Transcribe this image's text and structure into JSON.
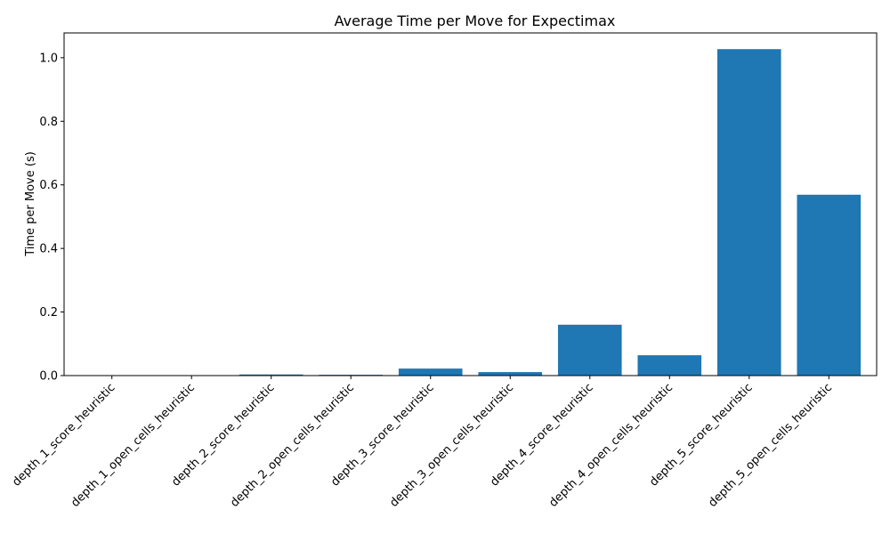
{
  "chart_data": {
    "type": "bar",
    "title": "Average Time per Move for Expectimax",
    "xlabel": "",
    "ylabel": "Time per Move (s)",
    "categories": [
      "depth_1_score_heuristic",
      "depth_1_open_cells_heuristic",
      "depth_2_score_heuristic",
      "depth_2_open_cells_heuristic",
      "depth_3_score_heuristic",
      "depth_3_open_cells_heuristic",
      "depth_4_score_heuristic",
      "depth_4_open_cells_heuristic",
      "depth_5_score_heuristic",
      "depth_5_open_cells_heuristic"
    ],
    "values": [
      0.0005,
      0.0004,
      0.0035,
      0.0025,
      0.022,
      0.011,
      0.16,
      0.064,
      1.027,
      0.569
    ],
    "ylim": [
      0,
      1.078
    ],
    "yticks": [
      0.0,
      0.2,
      0.4,
      0.6,
      0.8,
      1.0
    ],
    "ytick_labels": [
      "0.0",
      "0.2",
      "0.4",
      "0.6",
      "0.8",
      "1.0"
    ],
    "bar_color": "#1f77b4",
    "grid": false,
    "legend": "none"
  }
}
